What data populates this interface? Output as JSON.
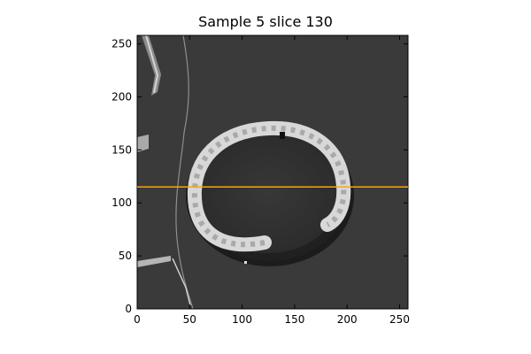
{
  "figure": {
    "title": "Sample 5 slice 130"
  },
  "image": {
    "description_name": "ct-slice-grayscale",
    "extent": [
      0,
      258,
      0,
      258
    ],
    "background_color": "#3a3a3a"
  },
  "axes": {
    "x_ticks": [
      "0",
      "50",
      "100",
      "150",
      "200",
      "250"
    ],
    "y_ticks": [
      "0",
      "50",
      "100",
      "150",
      "200",
      "250"
    ],
    "xlim": [
      0,
      258
    ],
    "ylim": [
      0,
      258
    ]
  },
  "overlay": {
    "line_y": 115,
    "line_color": "#ffa500"
  }
}
